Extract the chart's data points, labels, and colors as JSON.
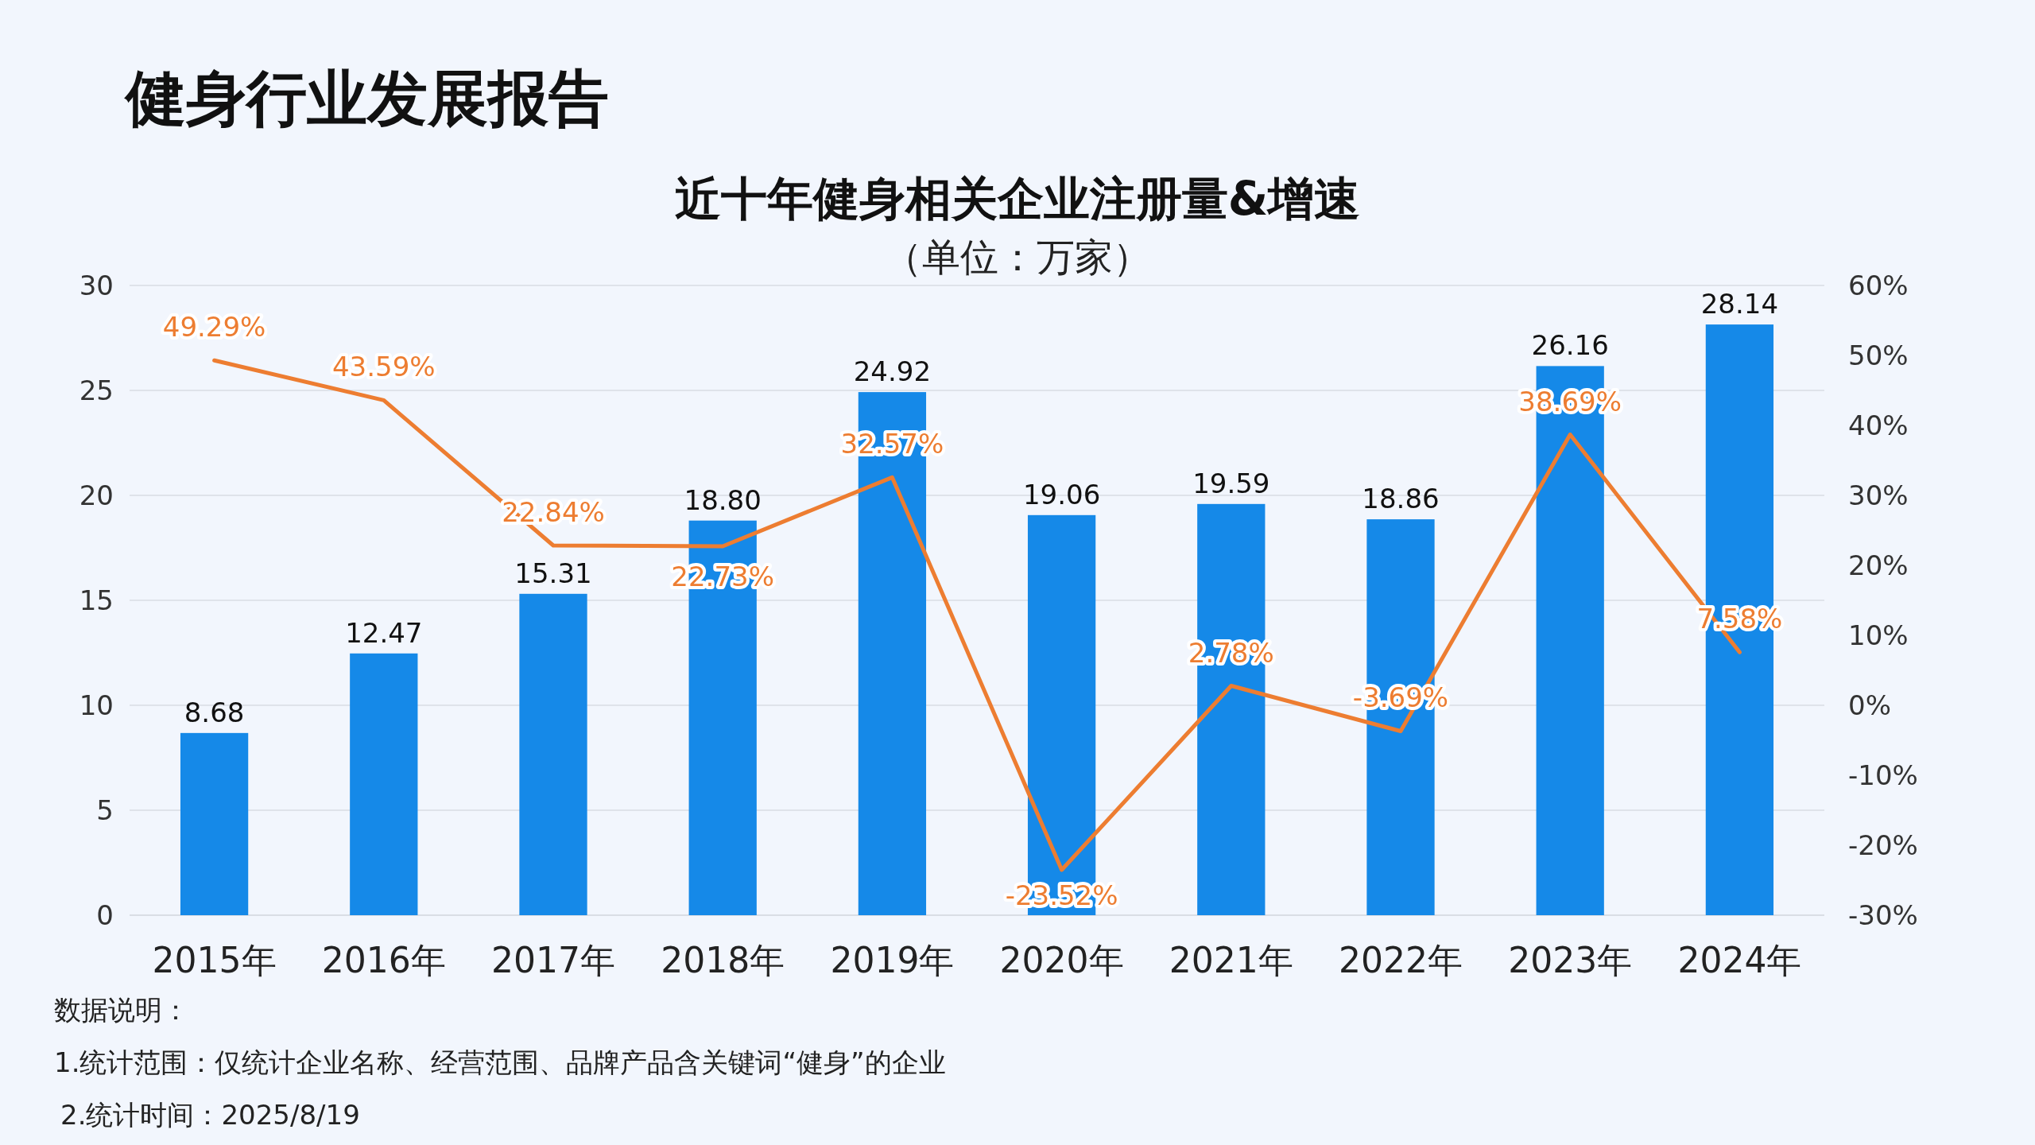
{
  "chart_data": {
    "type": "bar",
    "title": "近十年健身相关企业注册量&增速",
    "subtitle": "（单位：万家）",
    "annotations": [
      "健身行业发展报告",
      "数据说明：",
      "1.统计范围：仅统计企业名称、经营范围、品牌产品含关键词“健身”的企业",
      "2.统计时间：2025/8/19"
    ],
    "categories": [
      "2015年",
      "2016年",
      "2017年",
      "2018年",
      "2019年",
      "2020年",
      "2021年",
      "2022年",
      "2023年",
      "2024年"
    ],
    "series": [
      {
        "color": "#1589e8",
        "values": [
          8.68,
          12.47,
          15.31,
          18.8,
          24.92,
          19.06,
          19.59,
          18.86,
          26.16,
          28.14
        ],
        "value_labels": [
          "8.68",
          "12.47",
          "15.31",
          "18.80",
          "24.92",
          "19.06",
          "19.59",
          "18.86",
          "26.16",
          "28.14"
        ]
      },
      {
        "type": "line",
        "axis": "y2",
        "color": "#ed7d31",
        "values": [
          49.29,
          43.59,
          22.84,
          22.73,
          32.57,
          -23.52,
          2.78,
          -3.69,
          38.69,
          7.58
        ],
        "value_labels": [
          "49.29%",
          "43.59%",
          "22.84%",
          "22.73%",
          "32.57%",
          "-23.52%",
          "2.78%",
          "-3.69%",
          "38.69%",
          "7.58%"
        ]
      }
    ],
    "ylim": [
      0,
      30
    ],
    "yticks": [
      0,
      5,
      10,
      15,
      20,
      25,
      30
    ],
    "y2lim": [
      -30,
      60
    ],
    "y2ticks": [
      {
        "value": -30,
        "label": "-30%"
      },
      {
        "value": -20,
        "label": "-20%"
      },
      {
        "value": -10,
        "label": "-10%"
      },
      {
        "value": 0,
        "label": "0%"
      },
      {
        "value": 10,
        "label": "10%"
      },
      {
        "value": 20,
        "label": "20%"
      },
      {
        "value": 30,
        "label": "30%"
      },
      {
        "value": 40,
        "label": "40%"
      },
      {
        "value": 50,
        "label": "50%"
      },
      {
        "value": 60,
        "label": "60%"
      }
    ],
    "grid": "y"
  }
}
